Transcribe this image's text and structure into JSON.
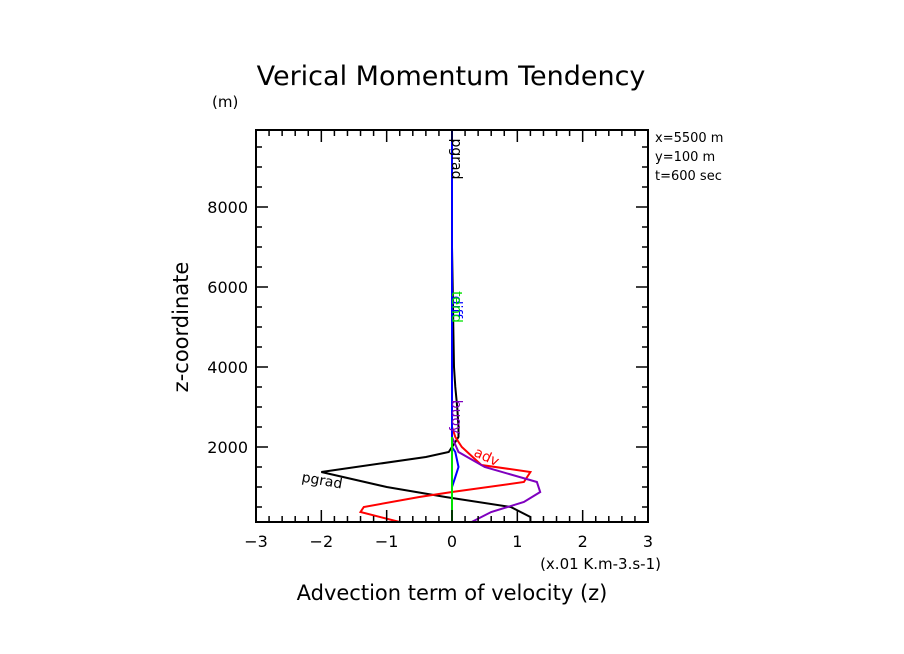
{
  "chart_data": {
    "type": "line",
    "title": "Verical Momentum Tendency",
    "xlabel": "Advection term of velocity (z)",
    "x_units": "(x.01 K.m-3.s-1)",
    "ylabel": "z-coordinate",
    "y_units": "(m)",
    "xlim": [
      -3,
      3
    ],
    "ylim": [
      125,
      9925
    ],
    "x_ticks": [
      -3,
      -2,
      -1,
      0,
      1,
      2,
      3
    ],
    "x_tick_labels": [
      "−3",
      "−2",
      "−1",
      "0",
      "1",
      "2",
      "3"
    ],
    "y_ticks": [
      2000,
      4000,
      6000,
      8000
    ],
    "y_tick_labels": [
      "2000",
      "4000",
      "6000",
      "8000"
    ],
    "x_minor_step": 0.2,
    "y_minor_step": 500,
    "grid": false,
    "info_lines": [
      "x=5500 m",
      "y=100 m",
      "t=600 sec"
    ],
    "series": [
      {
        "name": "pgrad",
        "color": "#000000",
        "points": [
          [
            1.2,
            125
          ],
          [
            1.2,
            250
          ],
          [
            0.9,
            500
          ],
          [
            -0.1,
            750
          ],
          [
            -1.0,
            1000
          ],
          [
            -2.0,
            1375
          ],
          [
            -0.4,
            1750
          ],
          [
            -0.05,
            1875
          ],
          [
            0.05,
            2125
          ],
          [
            0.1,
            2250
          ],
          [
            0.1,
            2500
          ],
          [
            0.08,
            3000
          ],
          [
            0.05,
            3500
          ],
          [
            0.03,
            4000
          ],
          [
            0.02,
            5000
          ],
          [
            0.01,
            6000
          ],
          [
            0.0,
            7000
          ],
          [
            0.0,
            8000
          ],
          [
            0.0,
            9925
          ]
        ],
        "labels": [
          {
            "text": "pgrad",
            "x": -2.0,
            "z": 1050
          },
          {
            "text": "pgrad",
            "x": 0.0,
            "z": 9200
          }
        ]
      },
      {
        "name": "adv",
        "color": "#ff0000",
        "points": [
          [
            -0.8,
            125
          ],
          [
            -1.4,
            375
          ],
          [
            -1.35,
            500
          ],
          [
            -0.5,
            750
          ],
          [
            0.0,
            875
          ],
          [
            1.1,
            1125
          ],
          [
            1.2,
            1375
          ],
          [
            0.45,
            1550
          ],
          [
            0.15,
            2000
          ],
          [
            0.05,
            2250
          ],
          [
            0.0,
            2500
          ],
          [
            0.0,
            9925
          ]
        ],
        "labels": [
          {
            "text": "adv",
            "x": 0.5,
            "z": 1650
          }
        ]
      },
      {
        "name": "buoy",
        "color": "#7f00bf",
        "points": [
          [
            0.3,
            125
          ],
          [
            0.6,
            375
          ],
          [
            1.1,
            625
          ],
          [
            1.35,
            875
          ],
          [
            1.3,
            1125
          ],
          [
            0.5,
            1500
          ],
          [
            0.1,
            1875
          ],
          [
            0.0,
            2250
          ],
          [
            0.0,
            9925
          ]
        ],
        "labels": [
          {
            "text": "buoy",
            "x": 0.0,
            "z": 2750
          }
        ]
      },
      {
        "name": "diff",
        "color": "#0000ff",
        "points": [
          [
            0.0,
            125
          ],
          [
            0.0,
            1000
          ],
          [
            0.05,
            1250
          ],
          [
            0.1,
            1500
          ],
          [
            0.05,
            1875
          ],
          [
            0.0,
            2000
          ],
          [
            0.0,
            9925
          ]
        ],
        "labels": [
          {
            "text": "diff",
            "x": 0.0,
            "z": 5500
          }
        ]
      },
      {
        "name": "tend",
        "color": "#00e000",
        "points": [
          [
            0.0,
            125
          ],
          [
            0.0,
            2250
          ]
        ],
        "labels": [
          {
            "text": "tend",
            "x": 0.0,
            "z": 5500
          }
        ]
      }
    ]
  }
}
